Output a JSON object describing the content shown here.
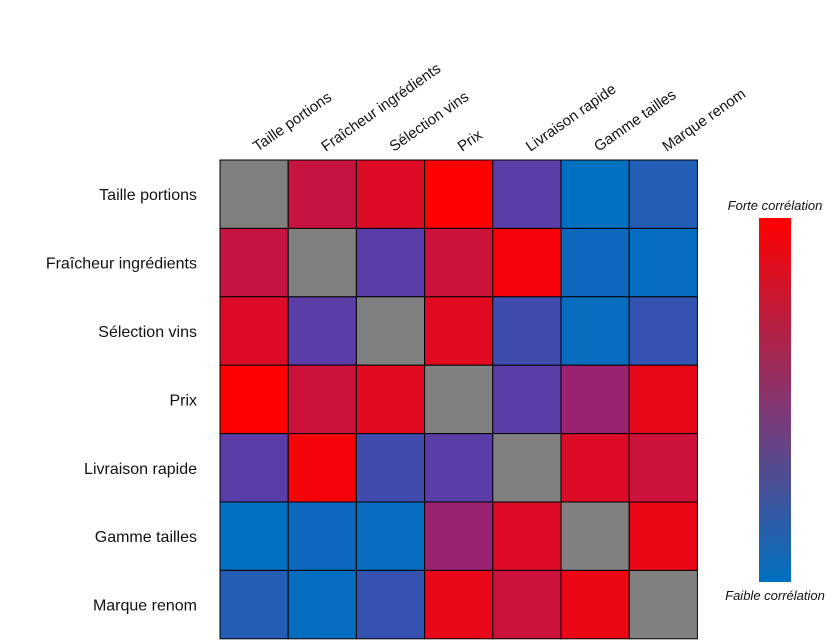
{
  "chart_data": {
    "type": "heatmap",
    "title": "",
    "xlabel": "",
    "ylabel": "",
    "categories": [
      "Taille portions",
      "Fraîcheur ingrédients",
      "Sélection vins",
      "Prix",
      "Livraison rapide",
      "Gamme tailles",
      "Marque renom"
    ],
    "row_labels": [
      "Taille portions",
      "Fraîcheur ingrédients",
      "Sélection vins",
      "Prix",
      "Livraison rapide",
      "Gamme tailles",
      "Marque renom"
    ],
    "values": [
      [
        null,
        0.8,
        0.88,
        1.0,
        0.4,
        0.0,
        0.15
      ],
      [
        0.8,
        null,
        0.4,
        0.82,
        0.97,
        0.06,
        0.02
      ],
      [
        0.88,
        0.4,
        null,
        0.9,
        0.28,
        0.03,
        0.23
      ],
      [
        1.0,
        0.82,
        0.9,
        null,
        0.4,
        0.65,
        0.92
      ],
      [
        0.4,
        0.97,
        0.28,
        0.4,
        null,
        0.88,
        0.82
      ],
      [
        0.0,
        0.06,
        0.03,
        0.65,
        0.88,
        null,
        0.93
      ],
      [
        0.15,
        0.02,
        0.23,
        0.92,
        0.82,
        0.93,
        null
      ]
    ],
    "diagonal_color": "#808080",
    "colorscale": {
      "low": "#0070C0",
      "mid": "#7030A0",
      "high": "#FF0000"
    },
    "legend": {
      "position": "right",
      "top_label": "Forte corrélation",
      "bottom_label": "Faible corrélation"
    },
    "grid": true
  }
}
